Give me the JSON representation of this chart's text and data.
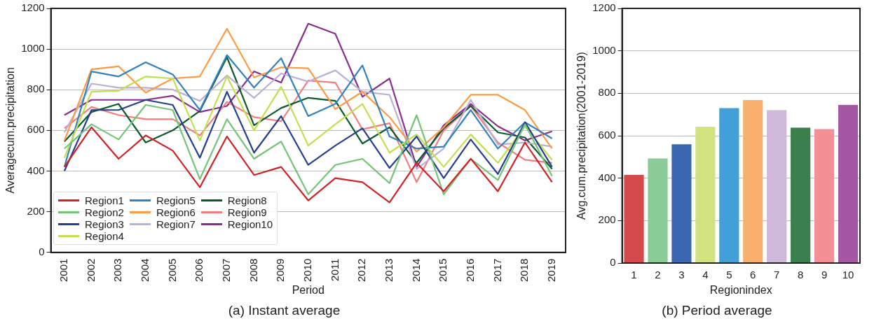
{
  "chart_data": [
    {
      "type": "line",
      "title": "(a) Instant average",
      "xlabel": "Period",
      "ylabel": "Averagecum.precipitation",
      "categories": [
        "2001",
        "2002",
        "2003",
        "2004",
        "2005",
        "2006",
        "2007",
        "2008",
        "2009",
        "2010",
        "2011",
        "2012",
        "2013",
        "2014",
        "2015",
        "2016",
        "2017",
        "2018",
        "2019"
      ],
      "series": [
        {
          "name": "Region1",
          "color": "#d42027",
          "values": [
            420,
            615,
            460,
            575,
            500,
            320,
            570,
            380,
            420,
            255,
            365,
            345,
            245,
            440,
            300,
            460,
            300,
            540,
            345
          ]
        },
        {
          "name": "Region2",
          "color": "#74c476",
          "values": [
            510,
            630,
            555,
            725,
            700,
            360,
            655,
            460,
            545,
            285,
            430,
            460,
            340,
            675,
            285,
            460,
            355,
            630,
            375
          ]
        },
        {
          "name": "Region3",
          "color": "#253f8f",
          "values": [
            400,
            700,
            700,
            750,
            725,
            465,
            790,
            490,
            670,
            430,
            525,
            610,
            415,
            570,
            365,
            555,
            385,
            640,
            420
          ]
        },
        {
          "name": "Region4",
          "color": "#c2df4f",
          "values": [
            465,
            790,
            795,
            865,
            855,
            550,
            865,
            600,
            815,
            525,
            630,
            730,
            490,
            580,
            420,
            580,
            440,
            620,
            455
          ]
        },
        {
          "name": "Region5",
          "color": "#3182bd",
          "values": [
            420,
            890,
            865,
            935,
            875,
            700,
            970,
            810,
            955,
            670,
            730,
            920,
            570,
            510,
            520,
            700,
            510,
            640,
            560
          ]
        },
        {
          "name": "Region6",
          "color": "#fd9a43",
          "values": [
            550,
            900,
            915,
            785,
            855,
            865,
            1100,
            860,
            910,
            905,
            705,
            790,
            665,
            495,
            615,
            775,
            775,
            700,
            510
          ]
        },
        {
          "name": "Region7",
          "color": "#bcaed5",
          "values": [
            590,
            830,
            810,
            810,
            800,
            745,
            870,
            760,
            880,
            840,
            895,
            790,
            775,
            410,
            510,
            750,
            530,
            540,
            520
          ]
        },
        {
          "name": "Region8",
          "color": "#0b5a2a",
          "values": [
            545,
            690,
            730,
            540,
            600,
            695,
            960,
            625,
            710,
            760,
            745,
            535,
            615,
            440,
            610,
            720,
            590,
            565,
            410
          ]
        },
        {
          "name": "Region9",
          "color": "#f57c7e",
          "values": [
            610,
            715,
            675,
            655,
            655,
            575,
            740,
            665,
            645,
            845,
            835,
            605,
            635,
            345,
            600,
            720,
            540,
            455,
            440
          ]
        },
        {
          "name": "Region10",
          "color": "#8b2d8f",
          "values": [
            675,
            750,
            750,
            750,
            770,
            690,
            720,
            890,
            835,
            1125,
            1075,
            765,
            855,
            420,
            625,
            730,
            620,
            550,
            595
          ]
        }
      ],
      "ylim": [
        0,
        1200
      ],
      "yticks": [
        0,
        200,
        400,
        600,
        800,
        1000,
        1200
      ],
      "grid": "y",
      "legend": "bottom left",
      "marker": "none",
      "line_style": "solid"
    },
    {
      "type": "bar",
      "title": "(b) Period average",
      "xlabel": "Regionindex",
      "ylabel": "Avg.cum.precipitation(2001-2019)",
      "categories": [
        "1",
        "2",
        "3",
        "4",
        "5",
        "6",
        "7",
        "8",
        "9",
        "10"
      ],
      "values": [
        415,
        493,
        560,
        642,
        730,
        768,
        720,
        638,
        631,
        745
      ],
      "colors": [
        "#d44a4c",
        "#8bcb98",
        "#3a67b0",
        "#d2e27e",
        "#42a0d8",
        "#f9b06e",
        "#cfb9d9",
        "#3b7f4f",
        "#f49095",
        "#a457a2"
      ],
      "ylim": [
        0,
        1200
      ],
      "yticks": [
        0,
        200,
        400,
        600,
        800,
        1000,
        1200
      ],
      "grid": "y"
    }
  ]
}
